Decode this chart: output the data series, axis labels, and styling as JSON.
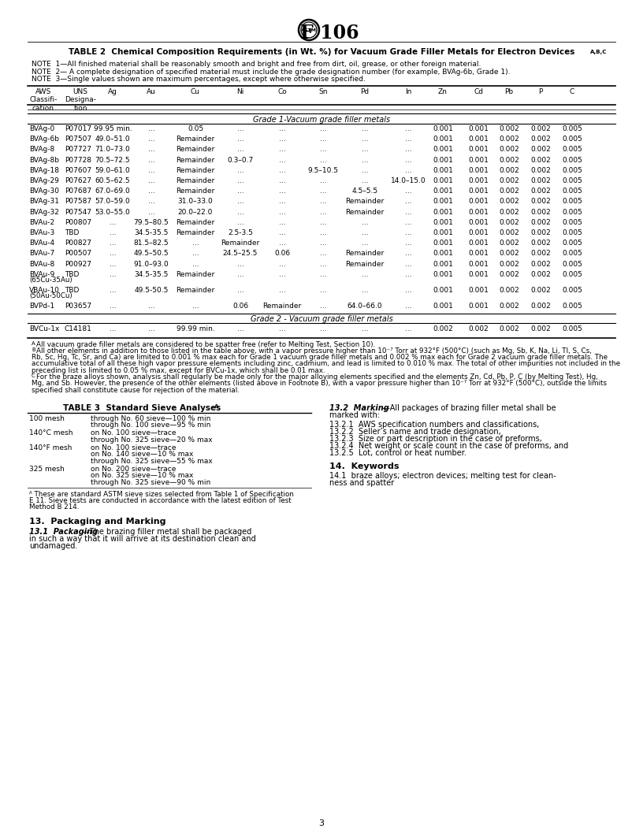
{
  "title": "F 106",
  "table2_title": "TABLE 2  Chemical Composition Requirements (in Wt. %) for Vacuum Grade Filler Metals for Electron Devices",
  "table2_title_super": "A,B,C",
  "notes": [
    "NOTE  1—All finished material shall be reasonably smooth and bright and free from dirt, oil, grease, or other foreign material.",
    "NOTE  2— A complete designation of specified material must include the grade designation number (for example, BVAg-6b, Grade 1).",
    "NOTE  3—Single values shown are maximum percentages, except where otherwise specified."
  ],
  "grade1_label": "Grade 1-Vacuum grade filler metals",
  "grade1_rows": [
    [
      "BVAg-0",
      "P07017",
      "99.95 min.",
      "...",
      "0.05",
      "...",
      "...",
      "...",
      "...",
      "...",
      "0.001",
      "0.001",
      "0.002",
      "0.002",
      "0.005"
    ],
    [
      "BVAg-6b",
      "P07507",
      "49.0–51.0",
      "...",
      "Remainder",
      "...",
      "...",
      "...",
      "...",
      "...",
      "0.001",
      "0.001",
      "0.002",
      "0.002",
      "0.005"
    ],
    [
      "BVAg-8",
      "P07727",
      "71.0–73.0",
      "...",
      "Remainder",
      "...",
      "...",
      "...",
      "...",
      "...",
      "0.001",
      "0.001",
      "0.002",
      "0.002",
      "0.005"
    ],
    [
      "BVAg-8b",
      "P07728",
      "70.5–72.5",
      "...",
      "Remainder",
      "0.3–0.7",
      "...",
      "...",
      "...",
      "...",
      "0.001",
      "0.001",
      "0.002",
      "0.002",
      "0.005"
    ],
    [
      "BVAg-18",
      "P07607",
      "59.0–61.0",
      "...",
      "Remainder",
      "...",
      "...",
      "9.5–10.5",
      "...",
      "...",
      "0.001",
      "0.001",
      "0.002",
      "0.002",
      "0.005"
    ],
    [
      "BVAg-29",
      "P07627",
      "60.5–62.5",
      "...",
      "Remainder",
      "...",
      "...",
      "...",
      "...",
      "14.0–15.0",
      "0.001",
      "0.001",
      "0.002",
      "0.002",
      "0.005"
    ],
    [
      "BVAg-30",
      "P07687",
      "67.0–69.0",
      "...",
      "Remainder",
      "...",
      "...",
      "...",
      "4.5–5.5",
      "...",
      "0.001",
      "0.001",
      "0.002",
      "0.002",
      "0.005"
    ],
    [
      "BVAg-31",
      "P07587",
      "57.0–59.0",
      "...",
      "31.0–33.0",
      "...",
      "...",
      "...",
      "Remainder",
      "...",
      "0.001",
      "0.001",
      "0.002",
      "0.002",
      "0.005"
    ],
    [
      "BVAg-32",
      "P07547",
      "53.0–55.0",
      "...",
      "20.0–22.0",
      "...",
      "...",
      "...",
      "Remainder",
      "...",
      "0.001",
      "0.001",
      "0.002",
      "0.002",
      "0.005"
    ],
    [
      "BVAu-2",
      "P00807",
      "...",
      "79.5–80.5",
      "Remainder",
      "...",
      "...",
      "...",
      "...",
      "...",
      "0.001",
      "0.001",
      "0.002",
      "0.002",
      "0.005"
    ],
    [
      "BVAu-3",
      "TBD",
      "...",
      "34.5-35.5",
      "Remainder",
      "2.5-3.5",
      "...",
      "...",
      "...",
      "...",
      "0.001",
      "0.001",
      "0.002",
      "0.002",
      "0.005"
    ],
    [
      "BVAu-4",
      "P00827",
      "...",
      "81.5–82.5",
      "...",
      "Remainder",
      "...",
      "...",
      "...",
      "...",
      "0.001",
      "0.001",
      "0.002",
      "0.002",
      "0.005"
    ],
    [
      "BVAu-7",
      "P00507",
      "...",
      "49.5–50.5",
      "...",
      "24.5–25.5",
      "0.06",
      "...",
      "Remainder",
      "...",
      "0.001",
      "0.001",
      "0.002",
      "0.002",
      "0.005"
    ],
    [
      "BVAu-8",
      "P00927",
      "...",
      "91.0–93.0",
      "...",
      "...",
      "...",
      "...",
      "Remainder",
      "...",
      "0.001",
      "0.001",
      "0.002",
      "0.002",
      "0.005"
    ],
    [
      "BVAu-9|(65Cu-35Au)",
      "TBD",
      "...",
      "34.5-35.5",
      "Remainder",
      "...",
      "...",
      "...",
      "...",
      "...",
      "0.001",
      "0.001",
      "0.002",
      "0.002",
      "0.005"
    ],
    [
      "VBAu-10|(50Au-50Cu)",
      "TBD",
      "...",
      "49.5-50.5",
      "Remainder",
      "...",
      "...",
      "...",
      "...",
      "...",
      "0.001",
      "0.001",
      "0.002",
      "0.002",
      "0.005"
    ],
    [
      "BVPd-1",
      "P03657",
      "...",
      "...",
      "...",
      "0.06",
      "Remainder",
      "...",
      "64.0–66.0",
      "...",
      "0.001",
      "0.001",
      "0.002",
      "0.002",
      "0.005"
    ]
  ],
  "grade2_label": "Grade 2 - Vacuum grade filler metals",
  "grade2_rows": [
    [
      "BVCu-1x",
      "C14181",
      "...",
      "...",
      "99.99 min.",
      "...",
      "...",
      "...",
      "...",
      "...",
      "0.002",
      "0.002",
      "0.002",
      "0.002",
      "0.005"
    ]
  ],
  "fn_texts": [
    [
      "A",
      "All vacuum grade filler metals are considered to be spatter free (refer to Melting Test, Section 10)."
    ],
    [
      "B",
      "All other elements in addition to those listed in the table above, with a vapor pressure higher than 10⁻⁷ Torr at 932°F (500°C) (such as Mg, Sb, K, Na, Li, Tl, S, Cs,"
    ],
    [
      "",
      "Rb, Sc, Hg, Tc, Sr, and Ca) are limited to 0.001 % max each for Grade 1 vacuum grade filler metals and 0.002 % max each for Grade 2 vacuum grade filler metals. The"
    ],
    [
      "",
      "accumulative total of all these high vapor pressure elements including zinc, cadmium, and lead is limited to 0.010 % max. The total of other impurities not included in the"
    ],
    [
      "",
      "preceding list is limited to 0.05 % max, except for BVCu-1x, which shall be 0.01 max."
    ],
    [
      "C",
      "For the braze alloys shown, analysis shall regularly be made only for the major alloying elements specified and the elements Zn, Cd, Pb, P, C (by Melting Test), Hg,"
    ],
    [
      "",
      "Mg, and Sb. However, the presence of the other elements (listed above in Footnote B), with a vapor pressure higher than 10⁻⁷ Torr at 932°F (500°C), outside the limits"
    ],
    [
      "",
      "specified shall constitute cause for rejection of the material."
    ]
  ],
  "table3_data": [
    [
      "100 mesh",
      [
        "through No. 60 sieve—100 % min",
        "through No. 100 sieve—95 % min"
      ]
    ],
    [
      "140°C mesh",
      [
        "on No. 100 sieve—trace",
        "through No. 325 sieve—20 % max"
      ]
    ],
    [
      "140°F mesh",
      [
        "on No. 100 sieve—trace",
        "on No. 140 sieve—10 % max",
        "through No. 325 sieve—55 % max"
      ]
    ],
    [
      "325 mesh",
      [
        "on No. 200 sieve—trace",
        "on No. 325 sieve—10 % max",
        "through No. 325 sieve—90 % min"
      ]
    ]
  ],
  "section13_2_items": [
    "13.2.1  AWS specification numbers and classifications,",
    "13.2.2  Seller’s name and trade designation,",
    "13.2.3  Size or part description in the case of preforms,",
    "13.2.4  Net weight or scale count in the case of preforms, and",
    "13.2.5  Lot, control or heat number."
  ],
  "bg_color": "#ffffff"
}
